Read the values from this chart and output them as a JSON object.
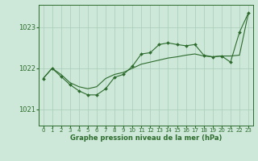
{
  "title": "Graphe pression niveau de la mer (hPa)",
  "xlim": [
    -0.5,
    23.5
  ],
  "ylim": [
    1020.6,
    1023.55
  ],
  "yticks": [
    1021,
    1022,
    1023
  ],
  "xticks": [
    0,
    1,
    2,
    3,
    4,
    5,
    6,
    7,
    8,
    9,
    10,
    11,
    12,
    13,
    14,
    15,
    16,
    17,
    18,
    19,
    20,
    21,
    22,
    23
  ],
  "bg_color": "#cde8d8",
  "grid_color": "#a8ccb8",
  "line_color": "#2d6b2d",
  "series1_y": [
    1021.75,
    1022.0,
    1021.85,
    1021.65,
    1021.55,
    1021.5,
    1021.55,
    1021.75,
    1021.85,
    1021.9,
    1022.0,
    1022.1,
    1022.15,
    1022.2,
    1022.25,
    1022.28,
    1022.32,
    1022.35,
    1022.3,
    1022.28,
    1022.3,
    1022.3,
    1022.32,
    1023.35
  ],
  "series2_y": [
    1021.75,
    1022.0,
    1021.8,
    1021.6,
    1021.45,
    1021.35,
    1021.35,
    1021.5,
    1021.78,
    1021.85,
    1022.05,
    1022.35,
    1022.38,
    1022.58,
    1022.62,
    1022.58,
    1022.55,
    1022.58,
    1022.32,
    1022.28,
    1022.3,
    1022.15,
    1022.88,
    1023.35
  ]
}
